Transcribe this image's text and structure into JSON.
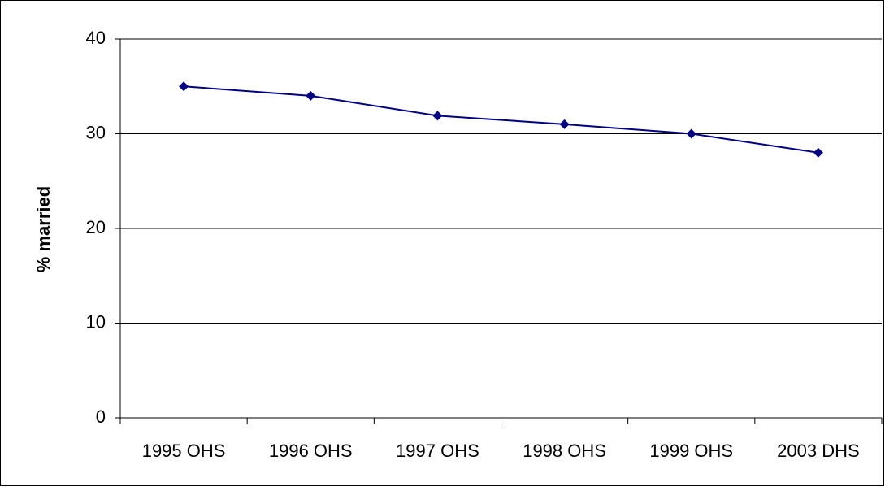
{
  "chart_data": {
    "type": "line",
    "y_label": "% married",
    "categories": [
      "1995 OHS",
      "1996 OHS",
      "1997 OHS",
      "1998 OHS",
      "1999 OHS",
      "2003 DHS"
    ],
    "series": [
      {
        "name": "% married",
        "color": "#000080",
        "values": [
          35,
          34,
          31.9,
          31,
          30,
          28
        ]
      }
    ],
    "ylim": [
      0,
      40
    ],
    "yticks": [
      0,
      10,
      20,
      30,
      40
    ],
    "grid": true
  }
}
